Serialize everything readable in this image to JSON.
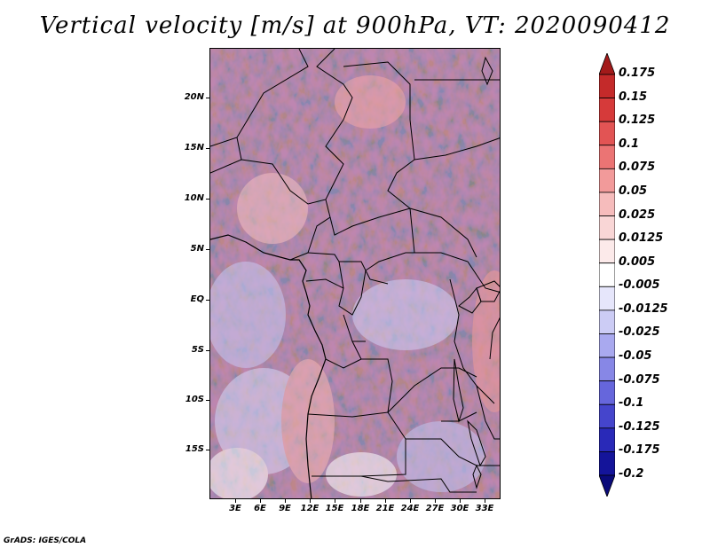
{
  "title": "Vertical velocity [m/s] at 900hPa, VT: 2020090412",
  "credit": "GrADS: IGES/COLA",
  "map": {
    "region": "Central Africa",
    "lon_range": [
      0,
      34
    ],
    "lat_range": [
      -20,
      25
    ],
    "lat_labels": [
      "20N",
      "15N",
      "10N",
      "5N",
      "EQ",
      "5S",
      "10S",
      "15S"
    ],
    "lon_labels": [
      "3E",
      "6E",
      "9E",
      "12E",
      "15E",
      "18E",
      "21E",
      "24E",
      "27E",
      "30E",
      "33E"
    ]
  },
  "colorbar": {
    "labels": [
      "0.175",
      "0.15",
      "0.125",
      "0.1",
      "0.075",
      "0.05",
      "0.025",
      "0.0125",
      "0.005",
      "-0.005",
      "-0.0125",
      "-0.025",
      "-0.05",
      "-0.075",
      "-0.1",
      "-0.125",
      "-0.175",
      "-0.2"
    ],
    "colors": [
      "#a31a1a",
      "#c42a2a",
      "#d63a3a",
      "#e25454",
      "#eb7474",
      "#f29a9a",
      "#f6bcbc",
      "#f9d6d6",
      "#fceaea",
      "#ffffff",
      "#e6e6fb",
      "#ccccf5",
      "#a9a9ef",
      "#8787e6",
      "#6666dc",
      "#4545cc",
      "#2929b8",
      "#14149a",
      "#0a0a7a"
    ]
  }
}
